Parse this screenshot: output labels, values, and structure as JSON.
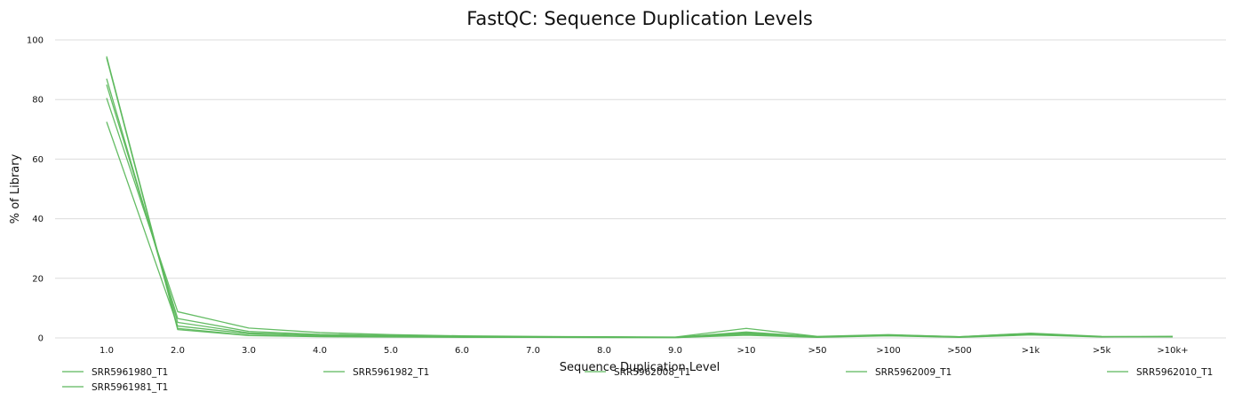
{
  "chart_data": {
    "type": "line",
    "title": "FastQC: Sequence Duplication Levels",
    "xlabel": "Sequence Duplication Level",
    "ylabel": "% of Library",
    "ylim": [
      0,
      100
    ],
    "yticks": [
      0,
      20,
      40,
      60,
      80,
      100
    ],
    "grid": true,
    "legend_position": "bottom",
    "categories": [
      "1.0",
      "2.0",
      "3.0",
      "4.0",
      "5.0",
      "6.0",
      "7.0",
      "8.0",
      "9.0",
      ">10",
      ">50",
      ">100",
      ">500",
      ">1k",
      ">5k",
      ">10k+"
    ],
    "color": "#5cb85c",
    "series": [
      {
        "name": "SRR5961980_T1",
        "values": [
          94.5,
          3.2,
          0.9,
          0.5,
          0.4,
          0.3,
          0.2,
          0.2,
          0.1,
          1.2,
          0.3,
          0.8,
          0.3,
          1.2,
          0.4,
          0.5
        ]
      },
      {
        "name": "SRR5961981_T1",
        "values": [
          85.0,
          6.5,
          2.2,
          1.2,
          0.8,
          0.5,
          0.4,
          0.3,
          0.2,
          2.0,
          0.4,
          1.0,
          0.4,
          1.5,
          0.4,
          0.4
        ]
      },
      {
        "name": "SRR5961982_T1",
        "values": [
          80.5,
          8.8,
          3.3,
          1.8,
          1.1,
          0.7,
          0.5,
          0.4,
          0.3,
          3.2,
          0.5,
          1.1,
          0.4,
          1.6,
          0.5,
          0.4
        ]
      },
      {
        "name": "SRR5962008_T1",
        "values": [
          87.0,
          5.2,
          1.7,
          0.9,
          0.6,
          0.4,
          0.3,
          0.2,
          0.2,
          1.7,
          0.3,
          0.9,
          0.3,
          1.3,
          0.4,
          0.4
        ]
      },
      {
        "name": "SRR5962009_T1",
        "values": [
          94.0,
          2.8,
          0.8,
          0.4,
          0.3,
          0.2,
          0.2,
          0.1,
          0.1,
          0.9,
          0.2,
          0.7,
          0.2,
          1.0,
          0.3,
          0.5
        ]
      },
      {
        "name": "SRR5962010_T1",
        "values": [
          72.5,
          4.0,
          1.4,
          0.8,
          0.6,
          0.4,
          0.3,
          0.3,
          0.2,
          1.5,
          0.3,
          0.9,
          0.3,
          1.3,
          0.4,
          0.4
        ]
      }
    ]
  }
}
